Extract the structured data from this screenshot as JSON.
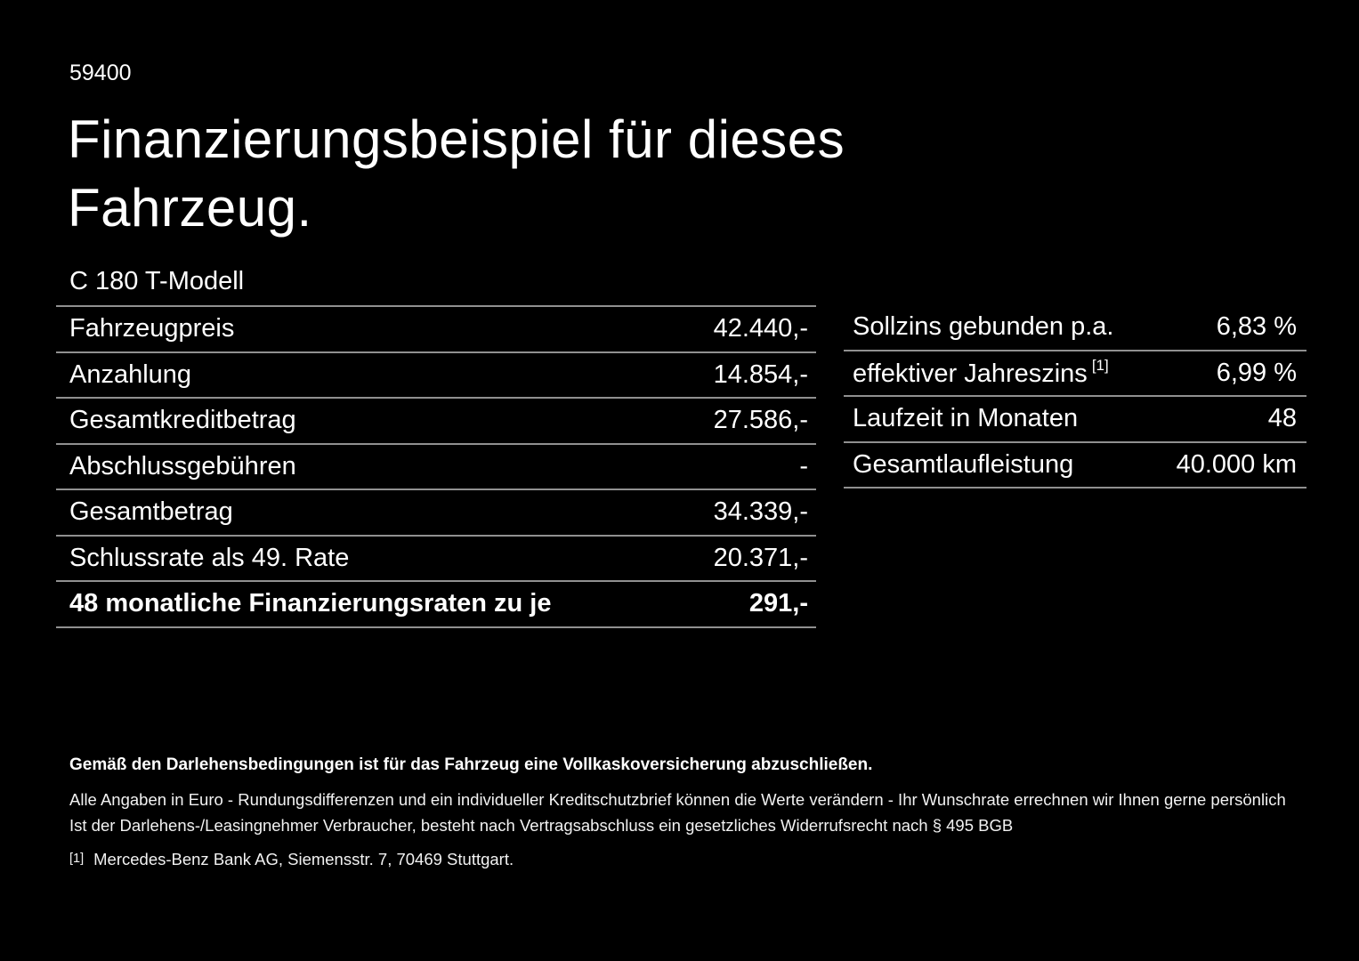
{
  "page": {
    "doc_number": "59400",
    "title_line1": "Finanzierungsbeispiel für dieses",
    "title_line2": "Fahrzeug.",
    "model": "C 180 T-Modell"
  },
  "finance_table": {
    "rows": [
      {
        "label": "Fahrzeugpreis",
        "value": "42.440,-"
      },
      {
        "label": "Anzahlung",
        "value": "14.854,-"
      },
      {
        "label": "Gesamtkreditbetrag",
        "value": "27.586,-"
      },
      {
        "label": "Abschlussgebühren",
        "value": "-"
      },
      {
        "label": "Gesamtbetrag",
        "value": "34.339,-"
      },
      {
        "label": "Schlussrate als 49. Rate",
        "value": "20.371,-"
      },
      {
        "label": "48 monatliche Finanzierungsraten zu je",
        "value": "291,-"
      }
    ]
  },
  "conditions_table": {
    "rows": [
      {
        "label": "Sollzins gebunden p.a.",
        "value": "6,83 %"
      },
      {
        "label": "effektiver Jahreszins",
        "footnote_marker": "[1]",
        "value": "6,99 %"
      },
      {
        "label": "Laufzeit in Monaten",
        "value": "48"
      },
      {
        "label": "Gesamtlaufleistung",
        "value": "40.000 km"
      }
    ]
  },
  "footer": {
    "bold_note": "Gemäß den Darlehensbedingungen ist für das Fahrzeug eine Vollkaskoversicherung abzuschließen.",
    "note1": "Alle Angaben in Euro - Rundungsdifferenzen und ein individueller Kreditschutzbrief können die Werte verändern - Ihr Wunschrate errechnen wir Ihnen gerne persönlich",
    "note2": "Ist der Darlehens-/Leasingnehmer Verbraucher, besteht nach Vertragsabschluss ein gesetzliches Widerrufsrecht nach § 495 BGB",
    "footnote_marker": "[1]",
    "footnote_text": "Mercedes-Benz Bank AG, Siemensstr. 7, 70469 Stuttgart."
  },
  "colors": {
    "background": "#000000",
    "text": "#ffffff",
    "divider": "#909090"
  }
}
